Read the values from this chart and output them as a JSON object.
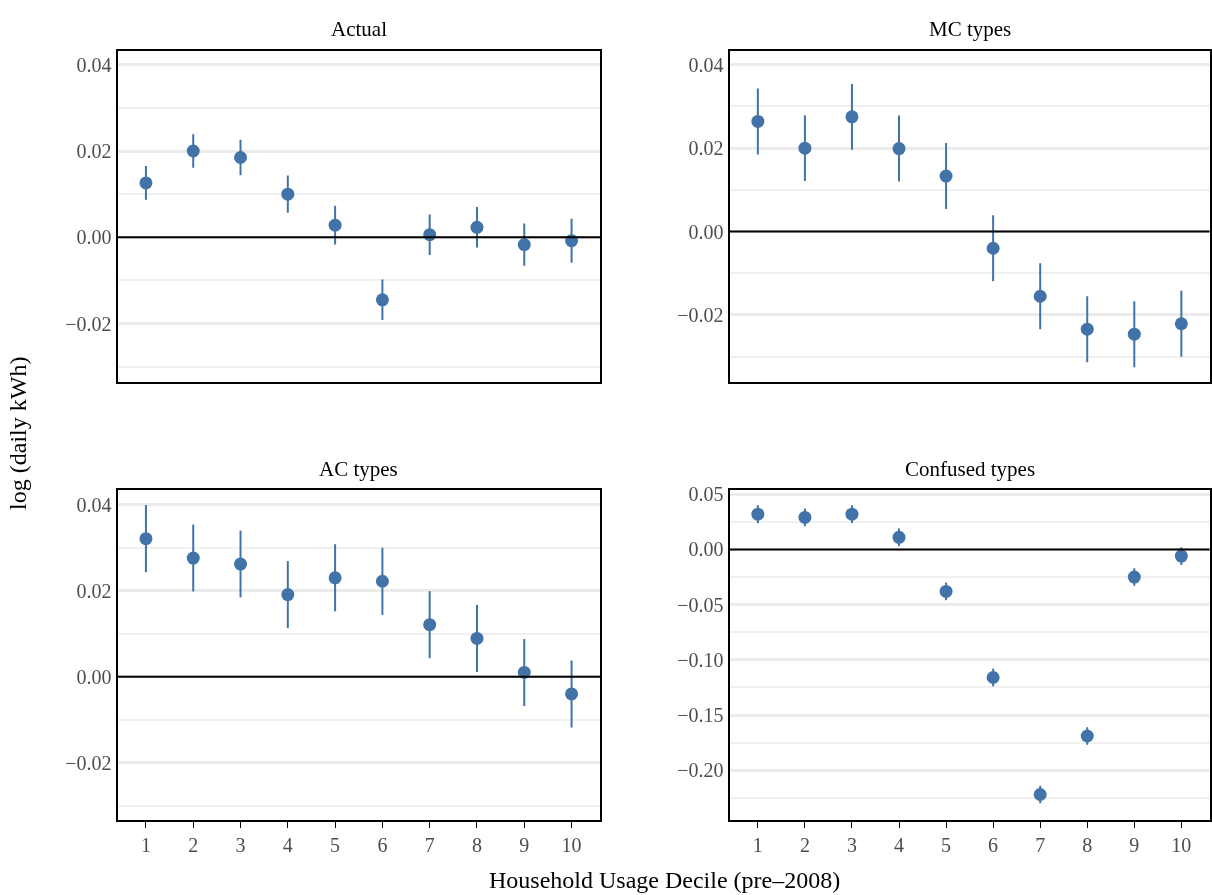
{
  "chart_data": [
    {
      "type": "scatter",
      "title": "Actual",
      "ylabel": "log (daily kWh)",
      "categories": [
        "1",
        "2",
        "3",
        "4",
        "5",
        "6",
        "7",
        "8",
        "9",
        "10"
      ],
      "tick_labels": "y",
      "marker": "circle",
      "grid": "y",
      "ylim": [
        -0.0335,
        0.0433
      ],
      "yticks": [
        {
          "value": -0.02,
          "label": "−0.02"
        },
        {
          "value": 0,
          "label": "0.00"
        },
        {
          "value": 0.02,
          "label": "0.02"
        },
        {
          "value": 0.04,
          "label": "0.04"
        }
      ],
      "series": [
        {
          "color": "#4173a8",
          "values": [
            0.0126,
            0.02,
            0.0185,
            0.01,
            0.0028,
            -0.0145,
            0.0006,
            0.0023,
            -0.0017,
            -0.0008
          ],
          "errors": [
            0.0039,
            0.0039,
            0.0041,
            0.0043,
            0.0045,
            0.0047,
            0.0047,
            0.0047,
            0.0049,
            0.0051
          ]
        }
      ],
      "ref_lines": [
        {
          "axis": "y",
          "value": 0,
          "color": "#000000"
        }
      ]
    },
    {
      "type": "scatter",
      "title": "MC types",
      "categories": [
        "1",
        "2",
        "3",
        "4",
        "5",
        "6",
        "7",
        "8",
        "9",
        "10"
      ],
      "tick_labels": "y",
      "marker": "circle",
      "grid": "y",
      "ylim": [
        -0.036,
        0.0434
      ],
      "yticks": [
        {
          "value": -0.02,
          "label": "−0.02"
        },
        {
          "value": 0,
          "label": "0.00"
        },
        {
          "value": 0.02,
          "label": "0.02"
        },
        {
          "value": 0.04,
          "label": "0.04"
        }
      ],
      "series": [
        {
          "color": "#4173a8",
          "values": [
            0.0264,
            0.02,
            0.0275,
            0.0199,
            0.0133,
            -0.004,
            -0.0155,
            -0.0234,
            -0.0246,
            -0.0221
          ],
          "errors": [
            0.0079,
            0.0079,
            0.0079,
            0.0079,
            0.0079,
            0.0079,
            0.0079,
            0.0079,
            0.0079,
            0.0079
          ]
        }
      ],
      "ref_lines": [
        {
          "axis": "y",
          "value": 0,
          "color": "#000000"
        }
      ]
    },
    {
      "type": "scatter",
      "title": "AC types",
      "xlabel": "Household Usage Decile (pre–2008)",
      "categories": [
        "1",
        "2",
        "3",
        "4",
        "5",
        "6",
        "7",
        "8",
        "9",
        "10"
      ],
      "marker": "circle",
      "grid": "y",
      "ylim": [
        -0.0334,
        0.0434
      ],
      "yticks": [
        {
          "value": -0.02,
          "label": "−0.02"
        },
        {
          "value": 0,
          "label": "0.00"
        },
        {
          "value": 0.02,
          "label": "0.02"
        },
        {
          "value": 0.04,
          "label": "0.04"
        }
      ],
      "series": [
        {
          "color": "#4173a8",
          "values": [
            0.0321,
            0.0276,
            0.0262,
            0.0191,
            0.023,
            0.0222,
            0.0121,
            0.0089,
            0.001,
            -0.004
          ],
          "errors": [
            0.0078,
            0.0078,
            0.0078,
            0.0078,
            0.0078,
            0.0078,
            0.0078,
            0.0078,
            0.0078,
            0.0078
          ]
        }
      ],
      "ref_lines": [
        {
          "axis": "y",
          "value": 0,
          "color": "#000000"
        }
      ]
    },
    {
      "type": "scatter",
      "title": "Confused types",
      "categories": [
        "1",
        "2",
        "3",
        "4",
        "5",
        "6",
        "7",
        "8",
        "9",
        "10"
      ],
      "marker": "circle",
      "grid": "y",
      "ylim": [
        -0.2455,
        0.0538
      ],
      "yticks": [
        {
          "value": -0.2,
          "label": "−0.20"
        },
        {
          "value": -0.15,
          "label": "−0.15"
        },
        {
          "value": -0.1,
          "label": "−0.10"
        },
        {
          "value": -0.05,
          "label": "−0.05"
        },
        {
          "value": 0,
          "label": "0.00"
        },
        {
          "value": 0.05,
          "label": "0.05"
        }
      ],
      "series": [
        {
          "color": "#4173a8",
          "values": [
            0.032,
            0.029,
            0.032,
            0.011,
            -0.038,
            -0.116,
            -0.222,
            -0.169,
            -0.025,
            -0.006
          ],
          "errors": [
            0.008,
            0.008,
            0.008,
            0.008,
            0.008,
            0.008,
            0.008,
            0.008,
            0.008,
            0.008
          ]
        }
      ],
      "ref_lines": [
        {
          "axis": "y",
          "value": 0,
          "color": "#000000"
        }
      ]
    }
  ]
}
